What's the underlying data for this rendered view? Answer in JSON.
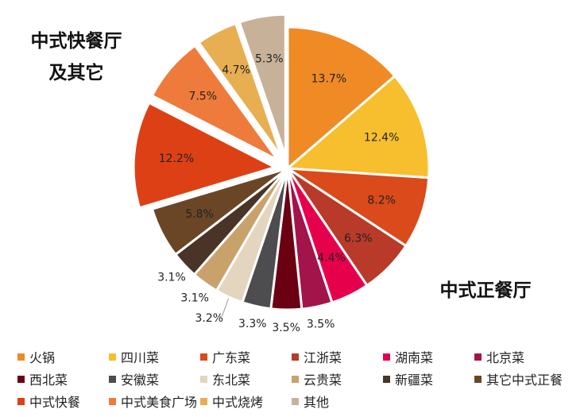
{
  "chart_data": {
    "type": "pie",
    "labels": [
      "火锅",
      "四川菜",
      "广东菜",
      "江浙菜",
      "湖南菜",
      "北京菜",
      "西北菜",
      "安徽菜",
      "东北菜",
      "云贵菜",
      "新疆菜",
      "其它中式正餐",
      "中式快餐",
      "中式美食广场",
      "中式烧烤",
      "其他"
    ],
    "values": [
      13.7,
      12.4,
      8.2,
      6.3,
      4.4,
      3.5,
      3.5,
      3.3,
      3.2,
      3.1,
      3.1,
      5.8,
      12.2,
      7.5,
      4.7,
      5.3
    ],
    "value_labels": [
      "13.7%",
      "12.4%",
      "8.2%",
      "6.3%",
      "4.4%",
      "3.5%",
      "3.5%",
      "3.3%",
      "3.2%",
      "3.1%",
      "3.1%",
      "5.8%",
      "12.2%",
      "7.5%",
      "4.7%",
      "5.3%"
    ],
    "colors": [
      "#F08A24",
      "#F7BF2E",
      "#DA4A1A",
      "#B93A28",
      "#E6004C",
      "#A3144A",
      "#6B0012",
      "#4D4D4F",
      "#E3D5BE",
      "#C9A16B",
      "#4A3428",
      "#6B4626",
      "#DD4015",
      "#EE7B3C",
      "#E8AE52",
      "#C7B299"
    ],
    "exploded": [
      false,
      false,
      false,
      false,
      false,
      false,
      false,
      false,
      false,
      false,
      false,
      false,
      true,
      true,
      true,
      true
    ],
    "group_labels": {
      "fast_food": [
        "中式快餐厅",
        "及其它"
      ],
      "formal": "中式正餐厅"
    },
    "legend_placement": "bottom"
  }
}
